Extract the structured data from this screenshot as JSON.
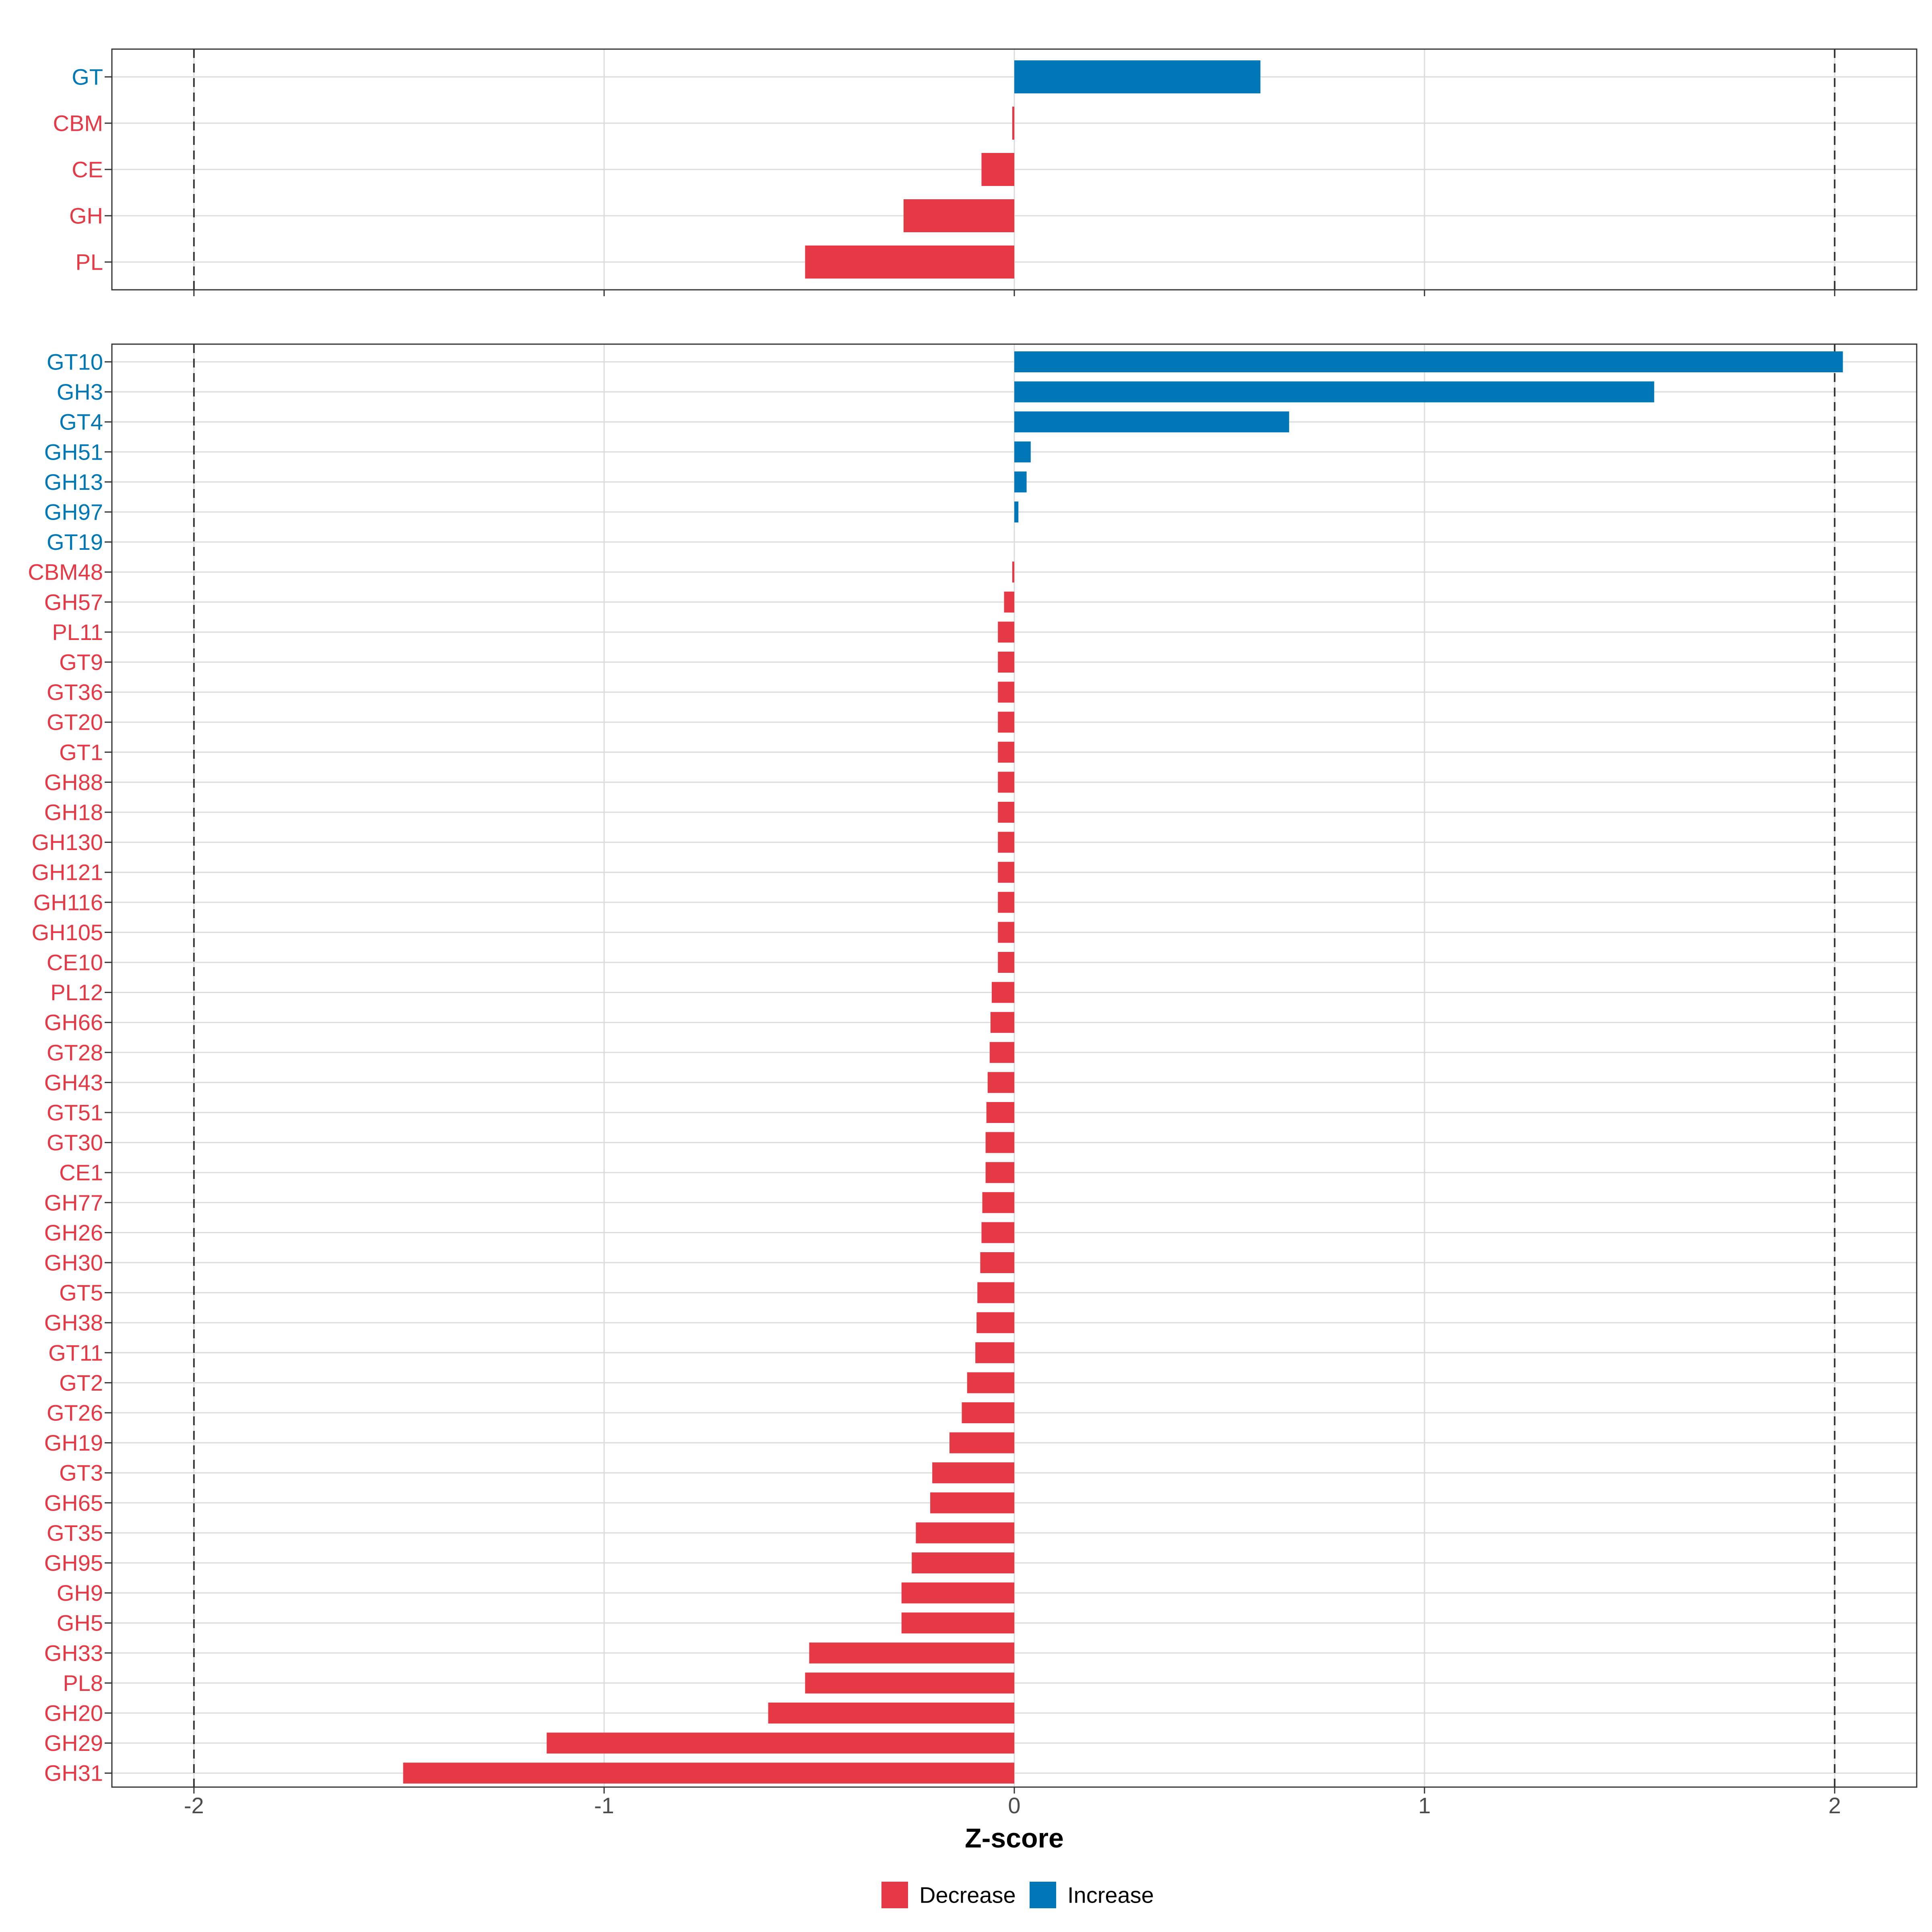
{
  "chart_data": {
    "type": "bar",
    "orientation": "horizontal",
    "xlabel": "Z-score",
    "xlim": [
      -2.2,
      2.2
    ],
    "xticks": [
      -2,
      -1,
      0,
      1,
      2
    ],
    "xtick_labels": [
      "-2",
      "-1",
      "0",
      "1",
      "2"
    ],
    "reference_lines": [
      -2,
      2
    ],
    "grid": true,
    "colors": {
      "Decrease": "#e63946",
      "Increase": "#0077b6"
    },
    "legend": {
      "position": "bottom",
      "items": [
        {
          "label": "Decrease",
          "color": "#e63946"
        },
        {
          "label": "Increase",
          "color": "#0077b6"
        }
      ]
    },
    "panels": [
      {
        "name": "class",
        "categories": [
          "GT",
          "CBM",
          "CE",
          "GH",
          "PL"
        ],
        "values": [
          0.6,
          -0.005,
          -0.08,
          -0.27,
          -0.51
        ],
        "direction": [
          "Increase",
          "Decrease",
          "Decrease",
          "Decrease",
          "Decrease"
        ]
      },
      {
        "name": "family",
        "categories": [
          "GT10",
          "GH3",
          "GT4",
          "GH51",
          "GH13",
          "GH97",
          "GT19",
          "CBM48",
          "GH57",
          "PL11",
          "GT9",
          "GT36",
          "GT20",
          "GT1",
          "GH88",
          "GH18",
          "GH130",
          "GH121",
          "GH116",
          "GH105",
          "CE10",
          "PL12",
          "GH66",
          "GT28",
          "GH43",
          "GT51",
          "GT30",
          "CE1",
          "GH77",
          "GH26",
          "GH30",
          "GT5",
          "GH38",
          "GT11",
          "GT2",
          "GT26",
          "GH19",
          "GT3",
          "GH65",
          "GT35",
          "GH95",
          "GH9",
          "GH5",
          "GH33",
          "PL8",
          "GH20",
          "GH29",
          "GH31"
        ],
        "values": [
          2.02,
          1.56,
          0.67,
          0.04,
          0.03,
          0.01,
          0.0,
          -0.005,
          -0.025,
          -0.04,
          -0.04,
          -0.04,
          -0.04,
          -0.04,
          -0.04,
          -0.04,
          -0.04,
          -0.04,
          -0.04,
          -0.04,
          -0.04,
          -0.055,
          -0.058,
          -0.06,
          -0.065,
          -0.068,
          -0.07,
          -0.07,
          -0.078,
          -0.08,
          -0.083,
          -0.09,
          -0.092,
          -0.095,
          -0.115,
          -0.128,
          -0.158,
          -0.2,
          -0.205,
          -0.24,
          -0.25,
          -0.275,
          -0.275,
          -0.5,
          -0.51,
          -0.6,
          -1.14,
          -1.49
        ],
        "direction": [
          "Increase",
          "Increase",
          "Increase",
          "Increase",
          "Increase",
          "Increase",
          "Increase",
          "Decrease",
          "Decrease",
          "Decrease",
          "Decrease",
          "Decrease",
          "Decrease",
          "Decrease",
          "Decrease",
          "Decrease",
          "Decrease",
          "Decrease",
          "Decrease",
          "Decrease",
          "Decrease",
          "Decrease",
          "Decrease",
          "Decrease",
          "Decrease",
          "Decrease",
          "Decrease",
          "Decrease",
          "Decrease",
          "Decrease",
          "Decrease",
          "Decrease",
          "Decrease",
          "Decrease",
          "Decrease",
          "Decrease",
          "Decrease",
          "Decrease",
          "Decrease",
          "Decrease",
          "Decrease",
          "Decrease",
          "Decrease",
          "Decrease",
          "Decrease",
          "Decrease",
          "Decrease",
          "Decrease"
        ]
      }
    ]
  }
}
